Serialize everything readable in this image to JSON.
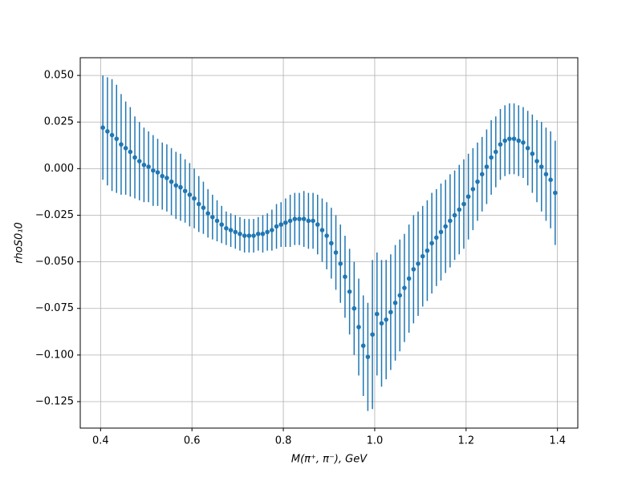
{
  "chart_data": {
    "type": "errorbar",
    "xlabel": "M(π⁺, π⁻), GeV",
    "ylabel": "rhoS0₁0",
    "color": "#1f77b4",
    "grid": true,
    "xlim": [
      0.3555,
      1.4445
    ],
    "ylim": [
      -0.1392,
      0.0595
    ],
    "xticks": [
      0.4,
      0.6,
      0.8,
      {
        "value": 1,
        "label": "1.0"
      },
      1.2,
      1.4
    ],
    "yticks": [
      {
        "value": 0.05,
        "label": "0.050"
      },
      {
        "value": 0.025,
        "label": "0.025"
      },
      {
        "value": 0,
        "label": "0.000"
      },
      {
        "value": -0.025,
        "label": "−0.025"
      },
      {
        "value": -0.05,
        "label": "−0.050"
      },
      {
        "value": -0.075,
        "label": "−0.075"
      },
      {
        "value": -0.1,
        "label": "−0.100"
      },
      {
        "value": -0.125,
        "label": "−0.125"
      }
    ],
    "x": [
      0.405,
      0.415,
      0.425,
      0.435,
      0.445,
      0.455,
      0.465,
      0.475,
      0.485,
      0.495,
      0.505,
      0.515,
      0.525,
      0.535,
      0.545,
      0.555,
      0.565,
      0.575,
      0.585,
      0.595,
      0.605,
      0.615,
      0.625,
      0.635,
      0.645,
      0.655,
      0.665,
      0.675,
      0.685,
      0.695,
      0.705,
      0.715,
      0.725,
      0.735,
      0.745,
      0.755,
      0.765,
      0.775,
      0.785,
      0.795,
      0.805,
      0.815,
      0.825,
      0.835,
      0.845,
      0.855,
      0.865,
      0.875,
      0.885,
      0.895,
      0.905,
      0.915,
      0.925,
      0.935,
      0.945,
      0.955,
      0.965,
      0.975,
      0.985,
      0.995,
      1.005,
      1.015,
      1.025,
      1.035,
      1.045,
      1.055,
      1.065,
      1.075,
      1.085,
      1.095,
      1.105,
      1.115,
      1.125,
      1.135,
      1.145,
      1.155,
      1.165,
      1.175,
      1.185,
      1.195,
      1.205,
      1.215,
      1.225,
      1.235,
      1.245,
      1.255,
      1.265,
      1.275,
      1.285,
      1.295,
      1.305,
      1.315,
      1.325,
      1.335,
      1.345,
      1.355,
      1.365,
      1.375,
      1.385,
      1.395
    ],
    "values": [
      0.022,
      0.02,
      0.018,
      0.016,
      0.013,
      0.011,
      0.009,
      0.006,
      0.004,
      0.002,
      0.001,
      -0.001,
      -0.002,
      -0.004,
      -0.005,
      -0.007,
      -0.009,
      -0.01,
      -0.012,
      -0.014,
      -0.016,
      -0.019,
      -0.021,
      -0.024,
      -0.026,
      -0.028,
      -0.03,
      -0.032,
      -0.033,
      -0.034,
      -0.035,
      -0.036,
      -0.036,
      -0.036,
      -0.035,
      -0.035,
      -0.034,
      -0.033,
      -0.031,
      -0.03,
      -0.029,
      -0.028,
      -0.027,
      -0.027,
      -0.027,
      -0.028,
      -0.028,
      -0.03,
      -0.033,
      -0.036,
      -0.04,
      -0.045,
      -0.051,
      -0.058,
      -0.066,
      -0.075,
      -0.085,
      -0.095,
      -0.101,
      -0.089,
      -0.078,
      -0.083,
      -0.081,
      -0.077,
      -0.072,
      -0.068,
      -0.064,
      -0.059,
      -0.054,
      -0.051,
      -0.047,
      -0.044,
      -0.04,
      -0.037,
      -0.034,
      -0.031,
      -0.028,
      -0.025,
      -0.022,
      -0.019,
      -0.015,
      -0.011,
      -0.007,
      -0.003,
      0.001,
      0.006,
      0.009,
      0.013,
      0.015,
      0.016,
      0.016,
      0.015,
      0.014,
      0.011,
      0.008,
      0.004,
      0.001,
      -0.003,
      -0.006,
      -0.013
    ],
    "errors": [
      0.028,
      0.029,
      0.03,
      0.029,
      0.027,
      0.025,
      0.024,
      0.022,
      0.021,
      0.02,
      0.019,
      0.019,
      0.018,
      0.018,
      0.018,
      0.018,
      0.018,
      0.018,
      0.017,
      0.017,
      0.016,
      0.015,
      0.014,
      0.013,
      0.012,
      0.011,
      0.01,
      0.009,
      0.009,
      0.009,
      0.009,
      0.009,
      0.009,
      0.009,
      0.009,
      0.01,
      0.01,
      0.011,
      0.012,
      0.012,
      0.013,
      0.014,
      0.014,
      0.014,
      0.015,
      0.015,
      0.015,
      0.016,
      0.017,
      0.018,
      0.019,
      0.02,
      0.021,
      0.022,
      0.023,
      0.025,
      0.026,
      0.027,
      0.029,
      0.04,
      0.033,
      0.034,
      0.032,
      0.031,
      0.031,
      0.03,
      0.029,
      0.029,
      0.029,
      0.028,
      0.027,
      0.027,
      0.027,
      0.026,
      0.026,
      0.025,
      0.025,
      0.024,
      0.024,
      0.024,
      0.023,
      0.022,
      0.021,
      0.02,
      0.02,
      0.02,
      0.019,
      0.019,
      0.019,
      0.019,
      0.019,
      0.019,
      0.019,
      0.02,
      0.021,
      0.022,
      0.024,
      0.025,
      0.026,
      0.028
    ]
  }
}
